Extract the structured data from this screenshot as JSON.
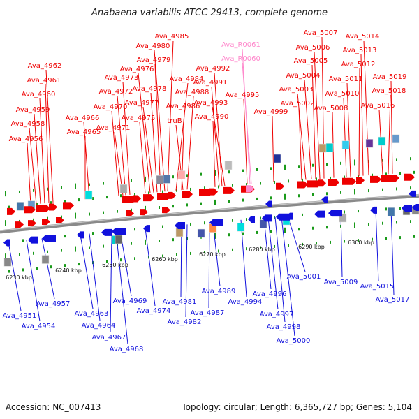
{
  "title": "Anabaena variabilis ATCC 29413, complete genome",
  "footer": {
    "accession": "Accession: NC_007413",
    "topology": "Topology: circular; Length: 6,365,727 bp; Genes: 5,104"
  },
  "colors": {
    "forward": "#ee0000",
    "reverse": "#1111dd",
    "rna": "#ff88cc",
    "backbone": "#8a8a8a",
    "tick": "#1a9a1a"
  },
  "forward_labels": [
    "Ava_4956",
    "Ava_4958",
    "Ava_4959",
    "Ava_4960",
    "Ava_4961",
    "Ava_4962",
    "Ava_4965",
    "Ava_4966",
    "Ava_4970",
    "Ava_4971",
    "Ava_4972",
    "Ava_4973",
    "Ava_4975",
    "Ava_4976",
    "Ava_4977",
    "Ava_4978",
    "Ava_4979",
    "Ava_4980",
    "Ava_4985",
    "Ava_4984",
    "Ava_4986",
    "truB",
    "Ava_4988",
    "Ava_4990",
    "Ava_4991",
    "Ava_4992",
    "Ava_4993",
    "Ava_4995",
    "Ava_4999",
    "Ava_5002",
    "Ava_5003",
    "Ava_5004",
    "Ava_5005",
    "Ava_5006",
    "Ava_5007",
    "Ava_5008",
    "Ava_5010",
    "Ava_5011",
    "Ava_5012",
    "Ava_5013",
    "Ava_5014",
    "Ava_5016",
    "Ava_5018",
    "Ava_5019"
  ],
  "rna_labels": [
    "Ava_R0061",
    "Ava_R0060"
  ],
  "reverse_labels": [
    "Ava_4951",
    "Ava_4954",
    "Ava_4957",
    "Ava_4963",
    "Ava_4964",
    "Ava_4967",
    "Ava_4968",
    "Ava_4969",
    "Ava_4974",
    "Ava_4981",
    "Ava_4982",
    "Ava_4987",
    "Ava_4989",
    "Ava_4994",
    "Ava_4996",
    "Ava_4997",
    "Ava_4998",
    "Ava_5000",
    "Ava_5001",
    "Ava_5009",
    "Ava_5015",
    "Ava_5017"
  ],
  "scale_labels": [
    "6230 kbp",
    "6240 kbp",
    "6250 kbp",
    "6260 kbp",
    "6270 kbp",
    "6280 kbp",
    "6290 kbp",
    "6300 kbp"
  ]
}
